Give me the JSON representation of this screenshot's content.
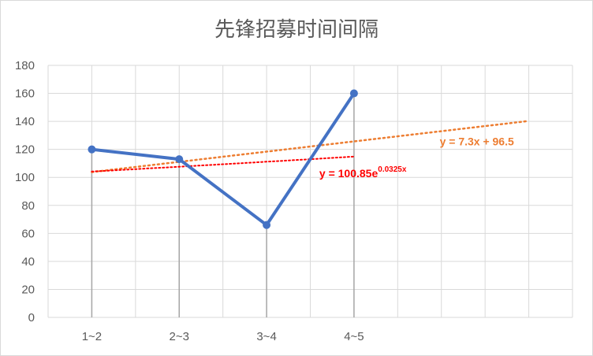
{
  "chart_data": {
    "type": "line",
    "title": "先锋招募时间间隔",
    "categories": [
      "1~2",
      "2~3",
      "3~4",
      "4~5"
    ],
    "series": [
      {
        "values": [
          120,
          113,
          66,
          160
        ],
        "color": "#4472c4"
      }
    ],
    "trendlines": [
      {
        "kind": "linear",
        "label": "y = 7.3x + 96.5",
        "slope": 7.3,
        "intercept": 96.5,
        "x_range": [
          1,
          6
        ],
        "color": "#ed7d31"
      },
      {
        "kind": "exponential",
        "label_base": "y = 100.85e",
        "label_exponent": "0.0325x",
        "a": 100.85,
        "b": 0.0325,
        "x_range": [
          1,
          4
        ],
        "color": "#ff0000"
      }
    ],
    "xlim": [
      0.5,
      6.5
    ],
    "ylim": [
      0,
      180
    ],
    "yticks": [
      0,
      20,
      40,
      60,
      80,
      100,
      120,
      140,
      160,
      180
    ],
    "grid": true,
    "drop_lines": true
  }
}
